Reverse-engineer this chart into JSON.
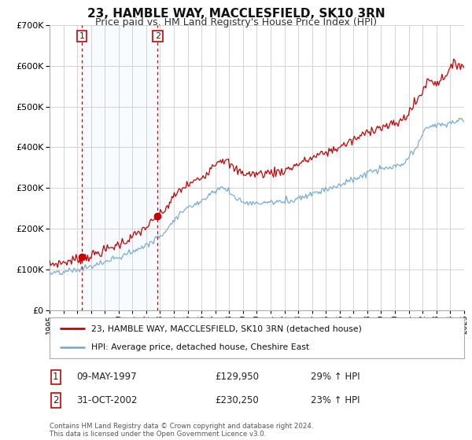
{
  "title": "23, HAMBLE WAY, MACCLESFIELD, SK10 3RN",
  "subtitle": "Price paid vs. HM Land Registry's House Price Index (HPI)",
  "legend_line1": "23, HAMBLE WAY, MACCLESFIELD, SK10 3RN (detached house)",
  "legend_line2": "HPI: Average price, detached house, Cheshire East",
  "sale1_date": "09-MAY-1997",
  "sale1_price": 129950,
  "sale1_hpi": "29% ↑ HPI",
  "sale1_label": "1",
  "sale1_year": 1997.36,
  "sale2_date": "31-OCT-2002",
  "sale2_price": 230250,
  "sale2_hpi": "23% ↑ HPI",
  "sale2_label": "2",
  "sale2_year": 2002.83,
  "footer1": "Contains HM Land Registry data © Crown copyright and database right 2024.",
  "footer2": "This data is licensed under the Open Government Licence v3.0.",
  "ylim_min": 0,
  "ylim_max": 700000,
  "xlim_min": 1995,
  "xlim_max": 2025,
  "bg_color": "#ffffff",
  "grid_color": "#cccccc",
  "red_line_color": "#cc0000",
  "blue_line_color": "#7aadd4",
  "shade_color": "#ddeeff",
  "title_fontsize": 11,
  "subtitle_fontsize": 9
}
